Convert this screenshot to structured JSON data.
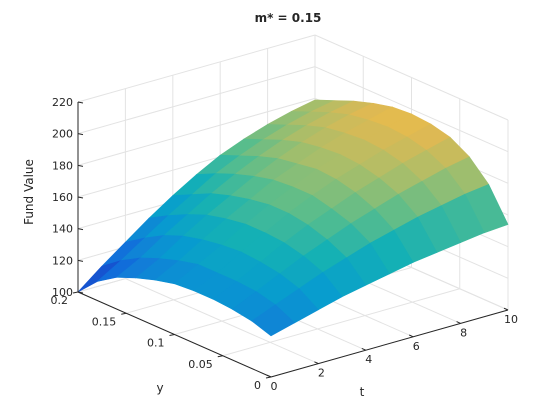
{
  "chart_data": {
    "type": "surface",
    "title": "m* = 0.15",
    "xlabel": "t",
    "ylabel": "y",
    "zlabel": "Fund Value",
    "xlim": [
      0,
      10
    ],
    "ylim": [
      0,
      0.2
    ],
    "zlim": [
      100,
      220
    ],
    "x_ticks": [
      "0",
      "2",
      "4",
      "6",
      "8",
      "10"
    ],
    "y_ticks": [
      "0",
      "0.05",
      "0.1",
      "0.15",
      "0.2"
    ],
    "z_ticks": [
      "100",
      "120",
      "140",
      "160",
      "180",
      "200",
      "220"
    ],
    "grid": true,
    "colormap": "parula",
    "x": [
      0,
      1,
      2,
      3,
      4,
      5,
      6,
      7,
      8,
      9,
      10
    ],
    "y": [
      0,
      0.02,
      0.04,
      0.06,
      0.08,
      0.1,
      0.12,
      0.14,
      0.16,
      0.18,
      0.2
    ],
    "z": [
      [
        126,
        130,
        134,
        138,
        141,
        144,
        147,
        149,
        151,
        153,
        154
      ],
      [
        130,
        136,
        142,
        148,
        153,
        158,
        162,
        166,
        169,
        172,
        174
      ],
      [
        132,
        139,
        146,
        153,
        159,
        165,
        170,
        175,
        179,
        183,
        186
      ],
      [
        133,
        140,
        148,
        156,
        163,
        169,
        175,
        180,
        185,
        189,
        193
      ],
      [
        133,
        140,
        149,
        157,
        165,
        172,
        178,
        183,
        188,
        192,
        196
      ],
      [
        132,
        140,
        148,
        157,
        165,
        172,
        179,
        184,
        189,
        193,
        197
      ],
      [
        129,
        137,
        146,
        155,
        163,
        171,
        177,
        183,
        188,
        192,
        196
      ],
      [
        125,
        133,
        143,
        152,
        160,
        168,
        175,
        181,
        186,
        190,
        193
      ],
      [
        120,
        128,
        138,
        147,
        156,
        164,
        171,
        177,
        182,
        186,
        189
      ],
      [
        112,
        121,
        131,
        141,
        150,
        159,
        166,
        172,
        177,
        181,
        184
      ],
      [
        100,
        112,
        123,
        134,
        144,
        153,
        161,
        167,
        172,
        176,
        179
      ]
    ]
  }
}
